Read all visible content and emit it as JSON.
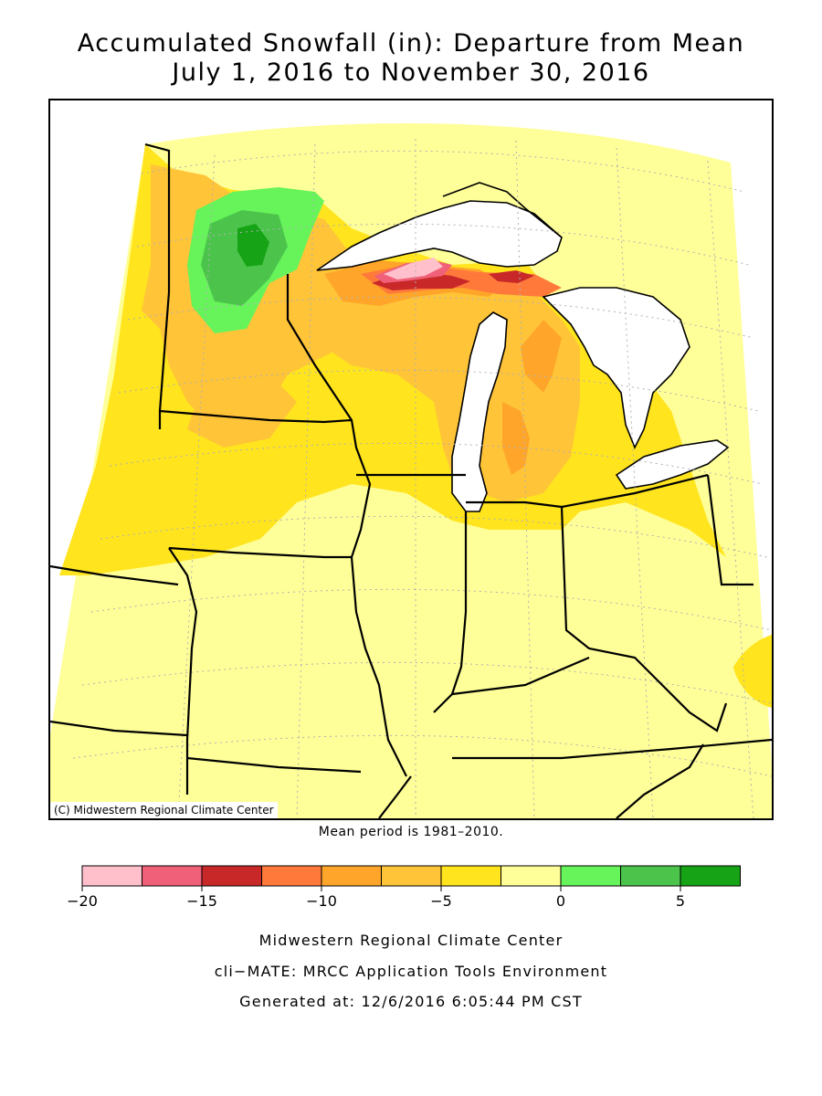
{
  "title": {
    "line1": "Accumulated Snowfall (in): Departure from Mean",
    "line2": "July 1, 2016 to November 30, 2016"
  },
  "map": {
    "copyright": "(C) Midwestern Regional Climate Center",
    "mean_note": "Mean period is 1981–2010.",
    "colors": {
      "land_zero": "#ffff99",
      "water": "#ffffff",
      "lines": "#000000",
      "grid": "#b0b0b0"
    }
  },
  "legend": {
    "colors": [
      "#ffc0cb",
      "#f06078",
      "#c82828",
      "#ff7a3a",
      "#ffa62a",
      "#ffc438",
      "#ffe41e",
      "#ffff99",
      "#66f45a",
      "#4cc44c",
      "#16a316"
    ],
    "tick_labels": [
      "−20",
      "−15",
      "−10",
      "−5",
      "0",
      "5"
    ],
    "tick_values": [
      -20,
      -15,
      -10,
      -5,
      0,
      5
    ],
    "min": -20,
    "max": 7.5,
    "step": 2.5
  },
  "footer": {
    "line1": "Midwestern Regional Climate Center",
    "line2": "cli−MATE: MRCC Application Tools Environment",
    "line3": "Generated at: 12/6/2016 6:05:44 PM CST"
  }
}
